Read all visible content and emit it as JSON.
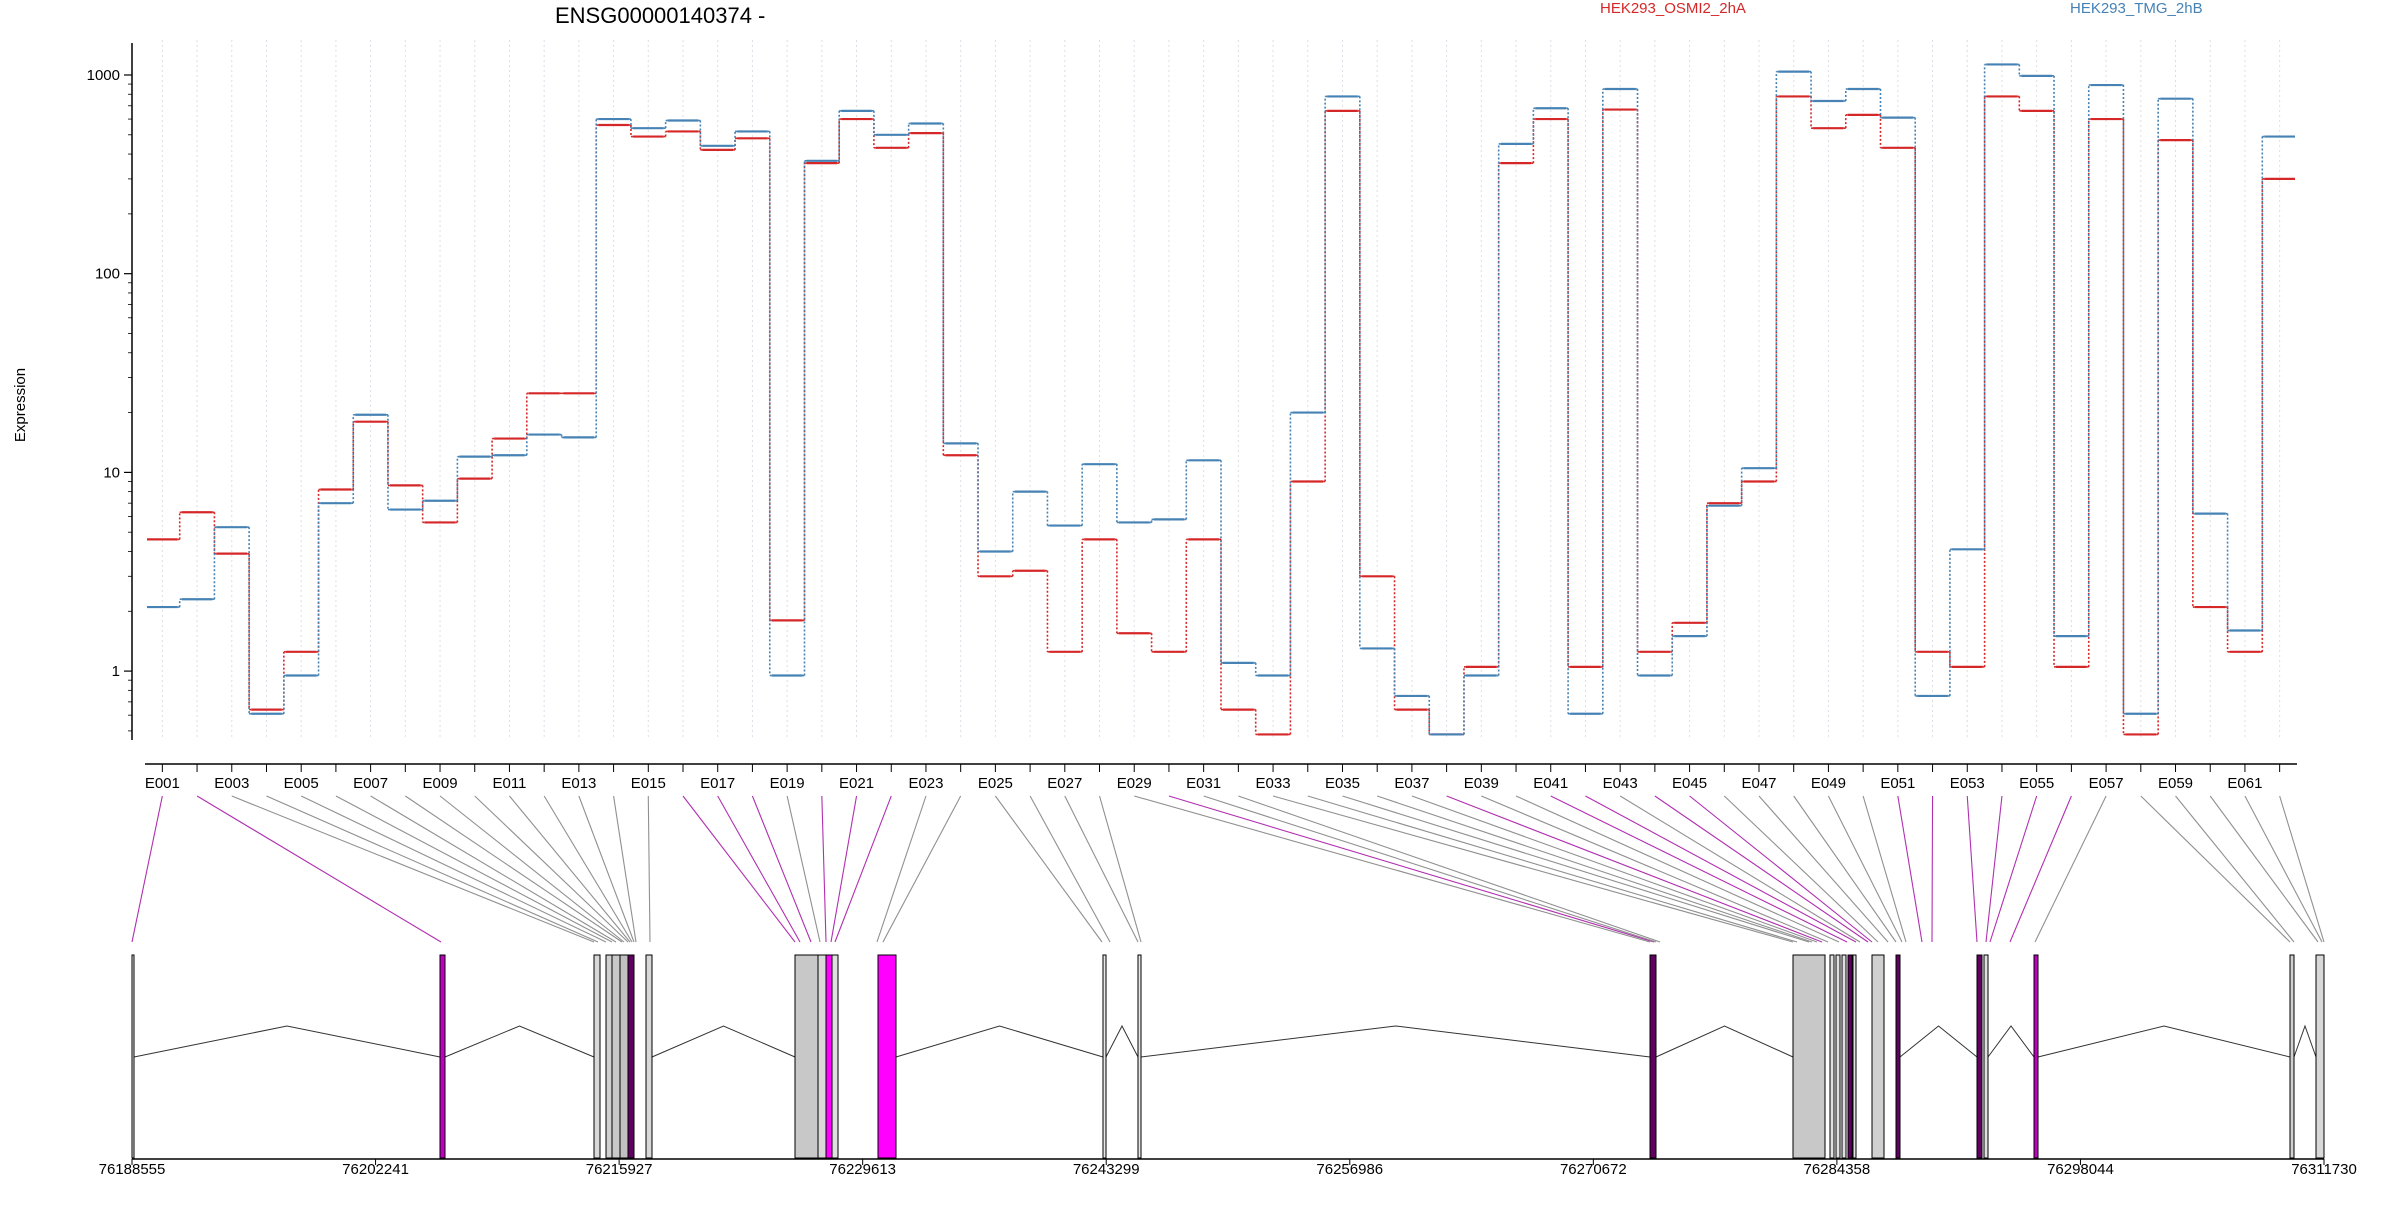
{
  "chart_data": {
    "type": "line",
    "title": "ENSG00000140374 -",
    "ylabel": "Expression",
    "yscale": "log",
    "ylim": [
      0.45,
      1500
    ],
    "yticks": [
      "1",
      "10",
      "100",
      "1000"
    ],
    "grid": true,
    "legend_position": "top",
    "exons": [
      "E001",
      "E002",
      "E003",
      "E004",
      "E005",
      "E006",
      "E007",
      "E008",
      "E009",
      "E010",
      "E011",
      "E012",
      "E013",
      "E014",
      "E015",
      "E016",
      "E017",
      "E018",
      "E019",
      "E020",
      "E021",
      "E022",
      "E023",
      "E024",
      "E025",
      "E026",
      "E027",
      "E028",
      "E029",
      "E030",
      "E031",
      "E032",
      "E033",
      "E034",
      "E035",
      "E036",
      "E037",
      "E038",
      "E039",
      "E040",
      "E041",
      "E042",
      "E043",
      "E044",
      "E045",
      "E046",
      "E047",
      "E048",
      "E049",
      "E050",
      "E051",
      "E052",
      "E053",
      "E054",
      "E055",
      "E056",
      "E057",
      "E058",
      "E059",
      "E060",
      "E061",
      "E062"
    ],
    "series": [
      {
        "name": "HEK293_OSMI2_2hA",
        "color": "#d62728",
        "values": [
          4.6,
          6.3,
          3.9,
          0.64,
          1.25,
          8.2,
          18.0,
          8.6,
          5.6,
          9.3,
          14.8,
          25.0,
          25.0,
          560,
          490,
          520,
          420,
          480,
          1.8,
          360,
          600,
          430,
          510,
          12.2,
          3.0,
          3.2,
          1.25,
          4.6,
          1.55,
          1.25,
          4.6,
          0.64,
          0.48,
          9.0,
          660,
          3.0,
          0.64,
          0.48,
          1.05,
          360,
          600,
          1.05,
          670,
          1.25,
          1.75,
          7.0,
          9.0,
          780,
          540,
          630,
          430,
          1.25,
          1.05,
          780,
          660,
          1.05,
          600,
          0.48,
          470,
          2.1,
          1.25,
          300
        ]
      },
      {
        "name": "HEK293_TMG_2hB",
        "color": "#4682b4",
        "values": [
          2.1,
          2.3,
          5.3,
          0.61,
          0.95,
          7.0,
          19.5,
          6.5,
          7.2,
          12.0,
          12.2,
          15.5,
          15.0,
          600,
          540,
          590,
          440,
          520,
          0.95,
          370,
          660,
          500,
          570,
          14.0,
          4.0,
          8.0,
          5.4,
          11.0,
          5.6,
          5.8,
          11.5,
          1.1,
          0.95,
          20.0,
          780,
          1.3,
          0.75,
          0.48,
          0.95,
          450,
          680,
          0.61,
          850,
          0.95,
          1.5,
          6.8,
          10.5,
          1040,
          740,
          850,
          610,
          0.75,
          4.1,
          1130,
          990,
          1.5,
          890,
          0.61,
          760,
          6.2,
          1.6,
          490
        ]
      }
    ],
    "gene_axis": {
      "ticks": [
        "76188555",
        "76202241",
        "76215927",
        "76229613",
        "76243299",
        "76256986",
        "76270672",
        "76284358",
        "76298044",
        "76311730"
      ]
    }
  }
}
